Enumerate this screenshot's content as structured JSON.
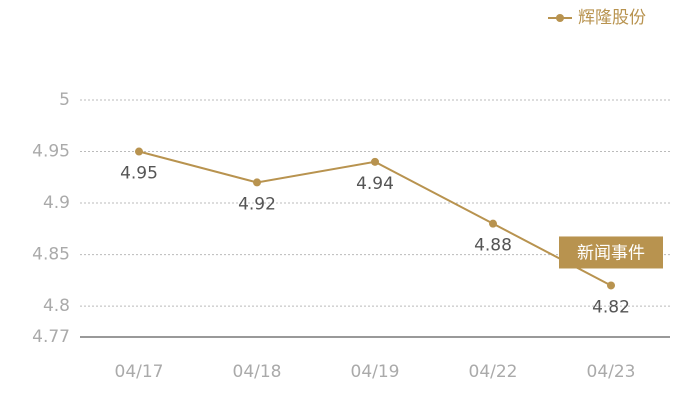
{
  "chart_data": {
    "type": "line",
    "categories": [
      "04/17",
      "04/18",
      "04/19",
      "04/22",
      "04/23"
    ],
    "series": [
      {
        "name": "辉隆股份",
        "color": "#b8934f",
        "values": [
          4.95,
          4.92,
          4.94,
          4.88,
          4.82
        ]
      }
    ],
    "ylim": [
      4.77,
      5
    ],
    "yticks": [
      4.77,
      4.8,
      4.85,
      4.9,
      4.95,
      5
    ],
    "grid": true,
    "legend": "top-right",
    "annotation": "新闻事件"
  }
}
